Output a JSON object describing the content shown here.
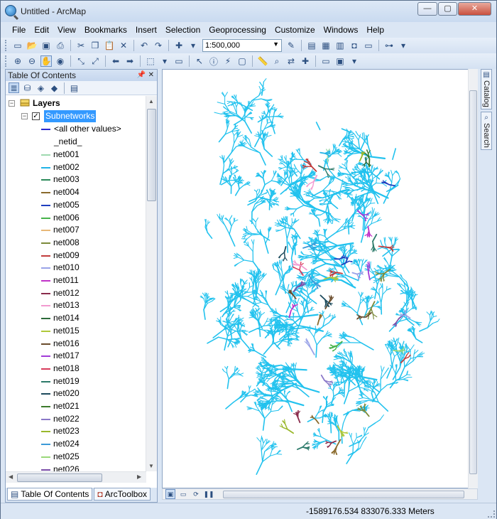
{
  "window": {
    "title": "Untitled - ArcMap",
    "minimize_glyph": "—",
    "maximize_glyph": "▢",
    "close_glyph": "✕"
  },
  "menu": [
    "File",
    "Edit",
    "View",
    "Bookmarks",
    "Insert",
    "Selection",
    "Geoprocessing",
    "Customize",
    "Windows",
    "Help"
  ],
  "toolbar": {
    "scale_value": "1:500,000"
  },
  "toc": {
    "title": "Table Of Contents",
    "root_label": "Layers",
    "layer_label": "Subnetworks",
    "layer_checked": true,
    "legend_heading_other": "<all other values>",
    "legend_heading_field": "_netid_",
    "entries": [
      {
        "label": "net001",
        "color": "#9ed9b0"
      },
      {
        "label": "net002",
        "color": "#22b3e6"
      },
      {
        "label": "net003",
        "color": "#2c8a5a"
      },
      {
        "label": "net004",
        "color": "#8a6a2c"
      },
      {
        "label": "net005",
        "color": "#1f3fbf"
      },
      {
        "label": "net006",
        "color": "#46b34a"
      },
      {
        "label": "net007",
        "color": "#e8b878"
      },
      {
        "label": "net008",
        "color": "#7c8a3a"
      },
      {
        "label": "net009",
        "color": "#c23c3c"
      },
      {
        "label": "net010",
        "color": "#9aa3e8"
      },
      {
        "label": "net011",
        "color": "#c032c8"
      },
      {
        "label": "net012",
        "color": "#8a2c4c"
      },
      {
        "label": "net013",
        "color": "#f29ad0"
      },
      {
        "label": "net014",
        "color": "#2c6a3a"
      },
      {
        "label": "net015",
        "color": "#b0c83a"
      },
      {
        "label": "net016",
        "color": "#6a4c2c"
      },
      {
        "label": "net017",
        "color": "#a23cd8"
      },
      {
        "label": "net018",
        "color": "#d83c5c"
      },
      {
        "label": "net019",
        "color": "#2c7a6a"
      },
      {
        "label": "net020",
        "color": "#1c4a5c"
      },
      {
        "label": "net021",
        "color": "#3c7a2c"
      },
      {
        "label": "net022",
        "color": "#8a78c8"
      },
      {
        "label": "net023",
        "color": "#9ab82c"
      },
      {
        "label": "net024",
        "color": "#3c9ad8"
      },
      {
        "label": "net025",
        "color": "#9ad87a"
      },
      {
        "label": "net026",
        "color": "#7a4ca8"
      }
    ],
    "tab_toc": "Table Of Contents",
    "tab_toolbox": "ArcToolbox"
  },
  "dock": {
    "catalog": "Catalog",
    "search": "Search"
  },
  "status": {
    "coordinates": "-1589176.534  833076.333 Meters"
  },
  "map": {
    "base_color": "#22c2ee"
  }
}
